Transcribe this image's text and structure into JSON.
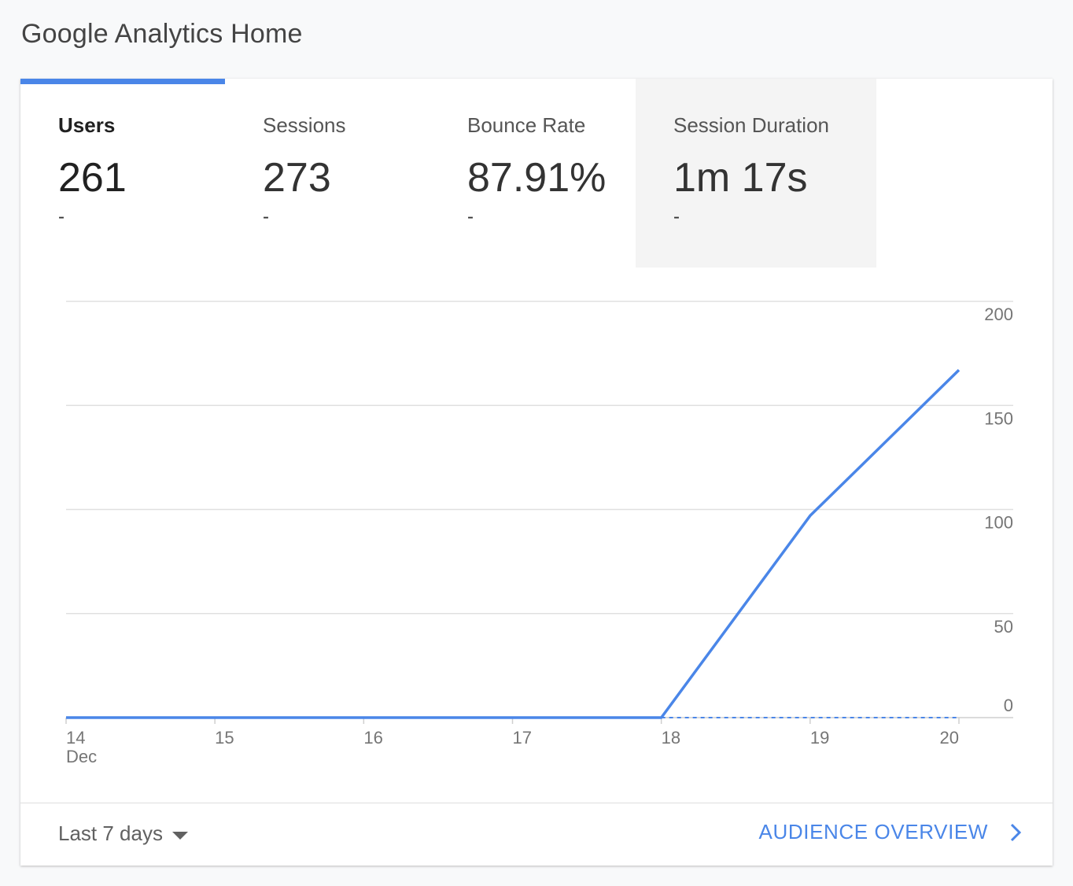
{
  "page": {
    "title": "Google Analytics Home"
  },
  "metrics": [
    {
      "label": "Users",
      "value": "261",
      "change": "-",
      "active": true
    },
    {
      "label": "Sessions",
      "value": "273",
      "change": "-"
    },
    {
      "label": "Bounce Rate",
      "value": "87.91%",
      "change": "-"
    },
    {
      "label": "Session Duration",
      "value": "1m 17s",
      "change": "-"
    }
  ],
  "colors": {
    "accent": "#4a86e8",
    "grid": "#e0e0e0",
    "axis_text": "#757575"
  },
  "chart_data": {
    "type": "line",
    "x": [
      "14",
      "15",
      "16",
      "17",
      "18",
      "19",
      "20"
    ],
    "x_sub": [
      "Dec",
      "",
      "",
      "",
      "",
      "",
      ""
    ],
    "series": [
      {
        "values": [
          0,
          0,
          0,
          0,
          0,
          97,
          167
        ],
        "style": "solid"
      },
      {
        "values": [
          0,
          0,
          0,
          0,
          0,
          0,
          0
        ],
        "style": "dashed"
      }
    ],
    "yticks": [
      0,
      50,
      100,
      150,
      200
    ],
    "ylim": [
      0,
      200
    ],
    "y_axis_position": "right",
    "grid": true
  },
  "footer": {
    "range_label": "Last 7 days",
    "link_label": "AUDIENCE OVERVIEW",
    "caret_icon": "caret-down-icon",
    "chevron_icon": "chevron-right-icon"
  }
}
